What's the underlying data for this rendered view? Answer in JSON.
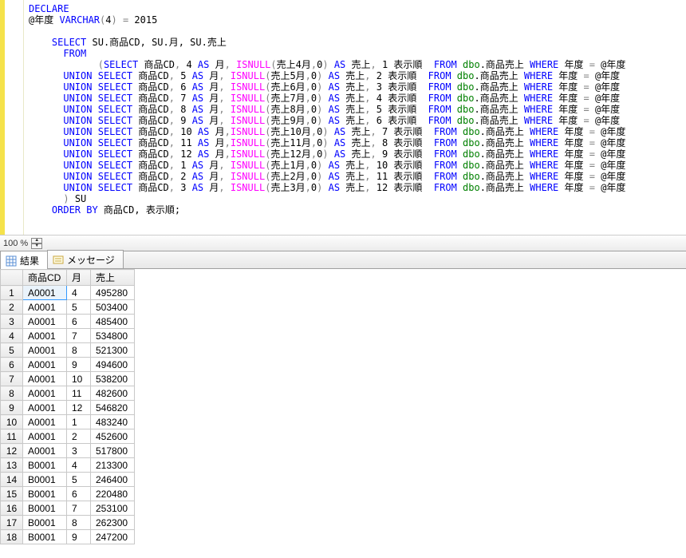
{
  "zoom": {
    "value": "100 %"
  },
  "tabs": {
    "results": "結果",
    "messages": "メッセージ"
  },
  "sql": {
    "line1_declare": "DECLARE",
    "line2_pre": "@年度 ",
    "line2_type": "VARCHAR",
    "line2_paren": "(",
    "line2_len": "4",
    "line2_rest": ") = 2015",
    "select": "SELECT",
    "select_cols": " SU.商品CD, SU.月, SU.売上",
    "from": "FROM",
    "open_paren": "        (",
    "isnull": "ISNULL",
    "as": "AS",
    "from_kw": "FROM",
    "where": "WHERE",
    "union_select": "UNION SELECT",
    "dbo": " dbo",
    "table": ".商品売上 ",
    "year_col": " 年度 ",
    "year_param": " @年度",
    "prod": " 商品CD",
    "uri": " 売上",
    "disp": " 表示順  ",
    "close_su": ") SU",
    "order_by": "ORDER BY",
    "order_cols": " 商品CD, 表示順;",
    "rows": [
      {
        "m": "4",
        "col": "売上4月",
        "d": "1"
      },
      {
        "m": "5",
        "col": "売上5月",
        "d": "2"
      },
      {
        "m": "6",
        "col": "売上6月",
        "d": "3"
      },
      {
        "m": "7",
        "col": "売上7月",
        "d": "4"
      },
      {
        "m": "8",
        "col": "売上8月",
        "d": "5"
      },
      {
        "m": "9",
        "col": "売上9月",
        "d": "6"
      },
      {
        "m": "10",
        "col": "売上10月",
        "d": "7"
      },
      {
        "m": "11",
        "col": "売上11月",
        "d": "8"
      },
      {
        "m": "12",
        "col": "売上12月",
        "d": "9"
      },
      {
        "m": "1",
        "col": "売上1月",
        "d": "10"
      },
      {
        "m": "2",
        "col": "売上2月",
        "d": "11"
      },
      {
        "m": "3",
        "col": "売上3月",
        "d": "12"
      }
    ]
  },
  "grid": {
    "headers": [
      "商品CD",
      "月",
      "売上"
    ],
    "rows": [
      [
        "A0001",
        "4",
        "495280"
      ],
      [
        "A0001",
        "5",
        "503400"
      ],
      [
        "A0001",
        "6",
        "485400"
      ],
      [
        "A0001",
        "7",
        "534800"
      ],
      [
        "A0001",
        "8",
        "521300"
      ],
      [
        "A0001",
        "9",
        "494600"
      ],
      [
        "A0001",
        "10",
        "538200"
      ],
      [
        "A0001",
        "11",
        "482600"
      ],
      [
        "A0001",
        "12",
        "546820"
      ],
      [
        "A0001",
        "1",
        "483240"
      ],
      [
        "A0001",
        "2",
        "452600"
      ],
      [
        "A0001",
        "3",
        "517800"
      ],
      [
        "B0001",
        "4",
        "213300"
      ],
      [
        "B0001",
        "5",
        "246400"
      ],
      [
        "B0001",
        "6",
        "220480"
      ],
      [
        "B0001",
        "7",
        "253100"
      ],
      [
        "B0001",
        "8",
        "262300"
      ],
      [
        "B0001",
        "9",
        "247200"
      ]
    ]
  },
  "colors": {
    "keyword": "#0000ff",
    "green": "#008000",
    "func": "#ff00ff",
    "red": "#ff0000",
    "gray": "#808080"
  }
}
